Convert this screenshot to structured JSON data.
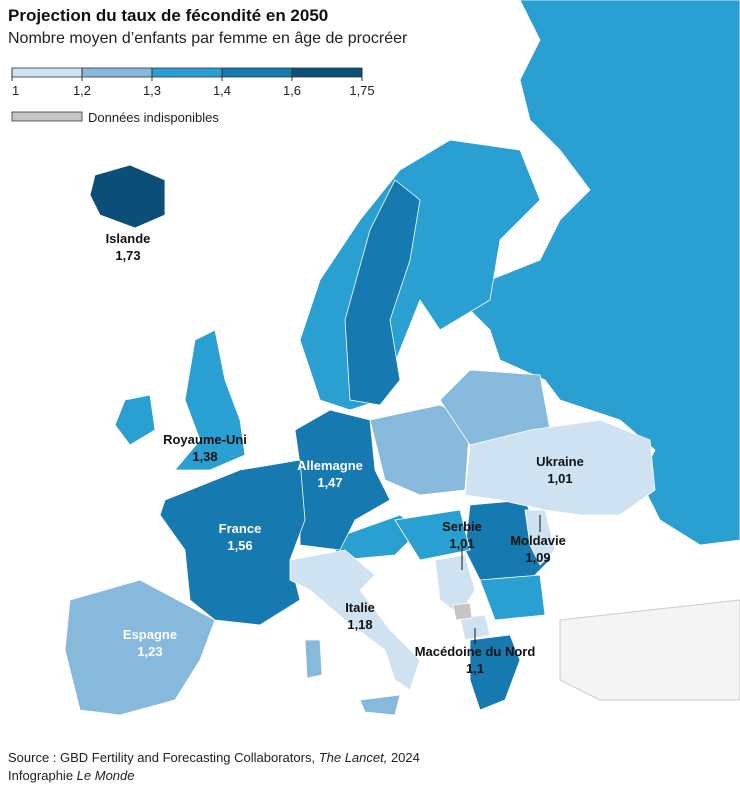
{
  "title": "Projection du taux de fécondité en 2050",
  "subtitle": "Nombre moyen d’enfants par femme en âge de procréer",
  "legend": {
    "ticks": [
      1,
      {
        "value": 1.2,
        "label": "1,2"
      },
      {
        "value": 1.3,
        "label": "1,3"
      },
      {
        "value": 1.4,
        "label": "1,4"
      },
      {
        "value": 1.6,
        "label": "1,6"
      },
      {
        "value": 1.75,
        "label": "1,75"
      }
    ],
    "colors": [
      "#cfe2f1",
      "#86b9dc",
      "#2a9fd2",
      "#1679b0",
      "#0b4f78"
    ],
    "missing_label": "Données indisponibles",
    "missing_color": "#c6c6c6"
  },
  "countries": [
    {
      "name": "Islande",
      "value": 1.73,
      "value_label": "1,73"
    },
    {
      "name": "Royaume-Uni",
      "value": 1.38,
      "value_label": "1,38"
    },
    {
      "name": "Allemagne",
      "value": 1.47,
      "value_label": "1,47"
    },
    {
      "name": "France",
      "value": 1.56,
      "value_label": "1,56"
    },
    {
      "name": "Espagne",
      "value": 1.23,
      "value_label": "1,23"
    },
    {
      "name": "Italie",
      "value": 1.18,
      "value_label": "1,18"
    },
    {
      "name": "Ukraine",
      "value": 1.01,
      "value_label": "1,01"
    },
    {
      "name": "Serbie",
      "value": 1.01,
      "value_label": "1,01"
    },
    {
      "name": "Moldavie",
      "value": 1.09,
      "value_label": "1,09"
    },
    {
      "name": "Macédoine du Nord",
      "value": 1.1,
      "value_label": "1,1"
    }
  ],
  "source": [
    "Source : GBD Fertility and Forecasting Collaborators, ",
    "The Lancet,",
    " 2024"
  ],
  "credit": [
    "Infographie ",
    "Le Monde"
  ]
}
